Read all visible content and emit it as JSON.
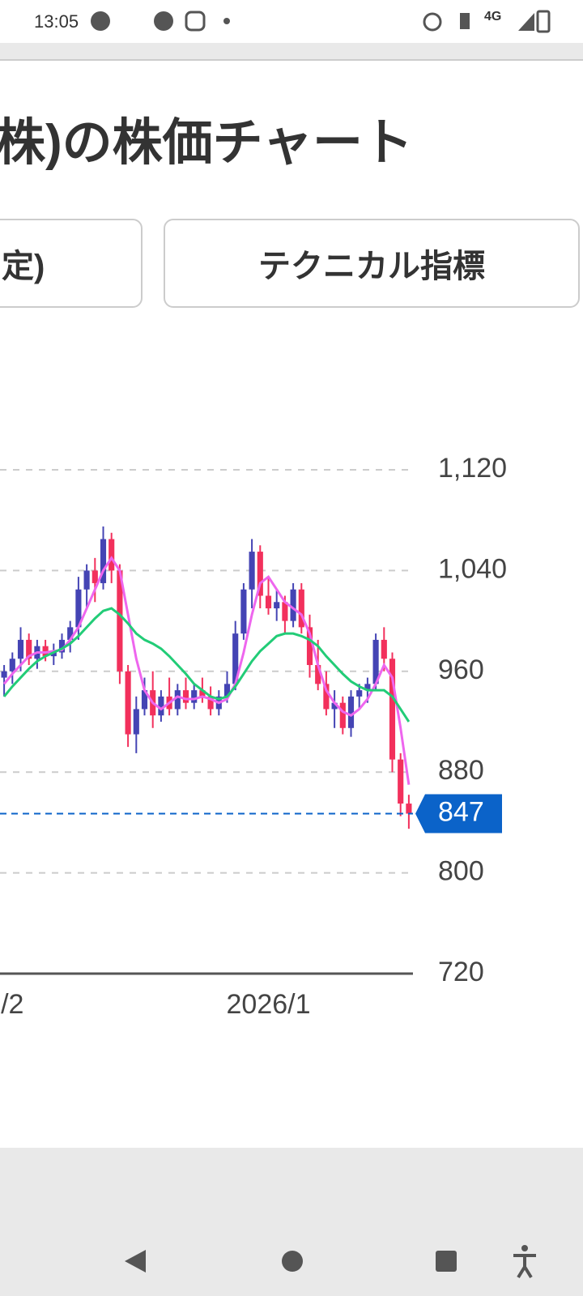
{
  "status_bar": {
    "time": "13:05",
    "network": "4G"
  },
  "header": {
    "title": "株)の株価チャート"
  },
  "tabs": [
    "定)",
    "テクニカル指標"
  ],
  "chart_data": {
    "type": "candlestick",
    "categories": [
      null,
      "/2",
      null,
      null,
      null,
      null,
      null,
      null,
      null,
      null,
      null,
      null,
      null,
      null,
      null,
      null,
      null,
      null,
      null,
      null,
      null,
      null,
      null,
      null,
      null,
      null,
      null,
      null,
      null,
      null,
      null,
      null,
      "2026/1",
      null,
      null,
      null,
      null,
      null,
      null,
      null,
      null,
      null,
      null,
      null,
      null,
      null,
      null,
      null,
      null,
      null
    ],
    "open": [
      955,
      960,
      970,
      985,
      970,
      980,
      972,
      975,
      985,
      995,
      1025,
      1040,
      1030,
      1065,
      1040,
      960,
      910,
      930,
      945,
      925,
      940,
      930,
      945,
      935,
      945,
      940,
      930,
      940,
      950,
      990,
      1025,
      1055,
      1020,
      1010,
      1015,
      1000,
      1025,
      995,
      965,
      950,
      930,
      935,
      915,
      940,
      945,
      950,
      985,
      970,
      890,
      855
    ],
    "high": [
      965,
      975,
      995,
      990,
      985,
      985,
      982,
      990,
      1000,
      1035,
      1045,
      1050,
      1075,
      1070,
      1045,
      965,
      940,
      955,
      960,
      945,
      955,
      950,
      955,
      950,
      955,
      948,
      945,
      960,
      1000,
      1030,
      1065,
      1060,
      1035,
      1025,
      1020,
      1030,
      1030,
      1005,
      985,
      960,
      945,
      940,
      945,
      950,
      955,
      990,
      995,
      975,
      895,
      862
    ],
    "low": [
      940,
      950,
      960,
      965,
      962,
      968,
      965,
      970,
      975,
      985,
      1010,
      1015,
      1025,
      1030,
      950,
      900,
      895,
      925,
      915,
      920,
      925,
      925,
      930,
      930,
      935,
      925,
      925,
      935,
      945,
      985,
      1010,
      1010,
      1005,
      1000,
      990,
      995,
      990,
      955,
      945,
      925,
      915,
      910,
      908,
      930,
      935,
      945,
      960,
      880,
      845,
      835
    ],
    "close": [
      960,
      970,
      985,
      970,
      980,
      972,
      975,
      985,
      995,
      1025,
      1040,
      1030,
      1065,
      1040,
      960,
      910,
      930,
      945,
      925,
      940,
      930,
      945,
      935,
      945,
      940,
      930,
      940,
      950,
      990,
      1025,
      1055,
      1020,
      1010,
      1015,
      1000,
      1025,
      995,
      965,
      950,
      930,
      935,
      915,
      940,
      945,
      950,
      985,
      970,
      890,
      855,
      847
    ],
    "up_color": "#4444b4",
    "down_color": "#f2305c",
    "lines": [
      {
        "color": "#ee66ee",
        "values": [
          950,
          958,
          965,
          972,
          975,
          975,
          976,
          977,
          985,
          995,
          1010,
          1025,
          1040,
          1050,
          1040,
          1005,
          970,
          945,
          935,
          930,
          935,
          940,
          938,
          938,
          940,
          938,
          935,
          938,
          950,
          975,
          1005,
          1030,
          1035,
          1025,
          1015,
          1010,
          1005,
          990,
          965,
          945,
          935,
          928,
          925,
          930,
          938,
          950,
          965,
          955,
          915,
          870
        ]
      },
      {
        "color": "#22cc77",
        "values": [
          940,
          948,
          955,
          962,
          968,
          972,
          975,
          978,
          982,
          988,
          995,
          1002,
          1008,
          1010,
          1005,
          998,
          990,
          985,
          982,
          978,
          972,
          965,
          958,
          950,
          945,
          940,
          938,
          940,
          948,
          958,
          968,
          976,
          982,
          988,
          990,
          990,
          988,
          985,
          980,
          972,
          965,
          958,
          952,
          948,
          945,
          945,
          945,
          940,
          930,
          920
        ]
      }
    ],
    "current_price": {
      "value": 847,
      "color": "#0b63c9"
    },
    "ylim": [
      720,
      1120
    ],
    "yticks": [
      720,
      800,
      880,
      960,
      {
        "value": 1040,
        "label": "1,040"
      },
      {
        "value": 1120,
        "label": "1,120"
      }
    ],
    "grid": true
  }
}
